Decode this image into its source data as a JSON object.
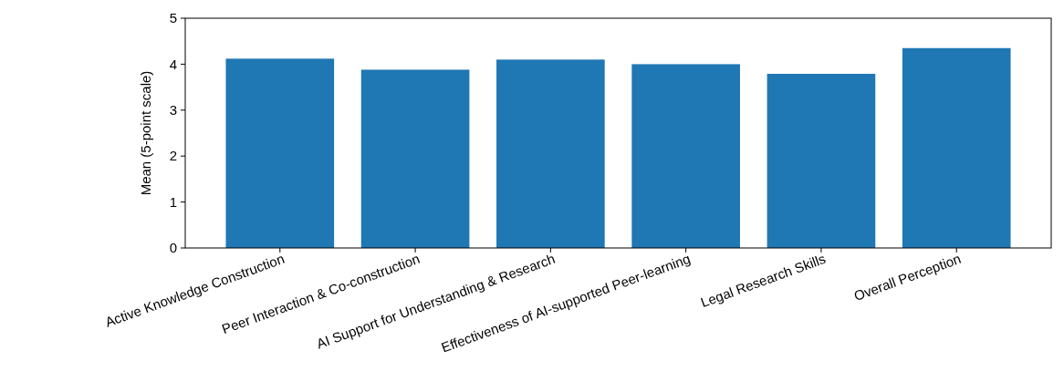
{
  "chart_data": {
    "type": "bar",
    "ylabel": "Mean (5-point scale)",
    "categories": [
      "Active Knowledge Construction",
      "Peer Interaction & Co-construction",
      "AI Support for Understanding & Research",
      "Effectiveness of AI-supported Peer-learning",
      "Legal Research Skills",
      "Overall Perception"
    ],
    "values": [
      4.12,
      3.88,
      4.1,
      4.0,
      3.79,
      4.35
    ],
    "color": "#1f77b4",
    "ylim": [
      0,
      5
    ],
    "yticks": [
      0,
      1,
      2,
      3,
      4,
      5
    ],
    "grid": false
  }
}
